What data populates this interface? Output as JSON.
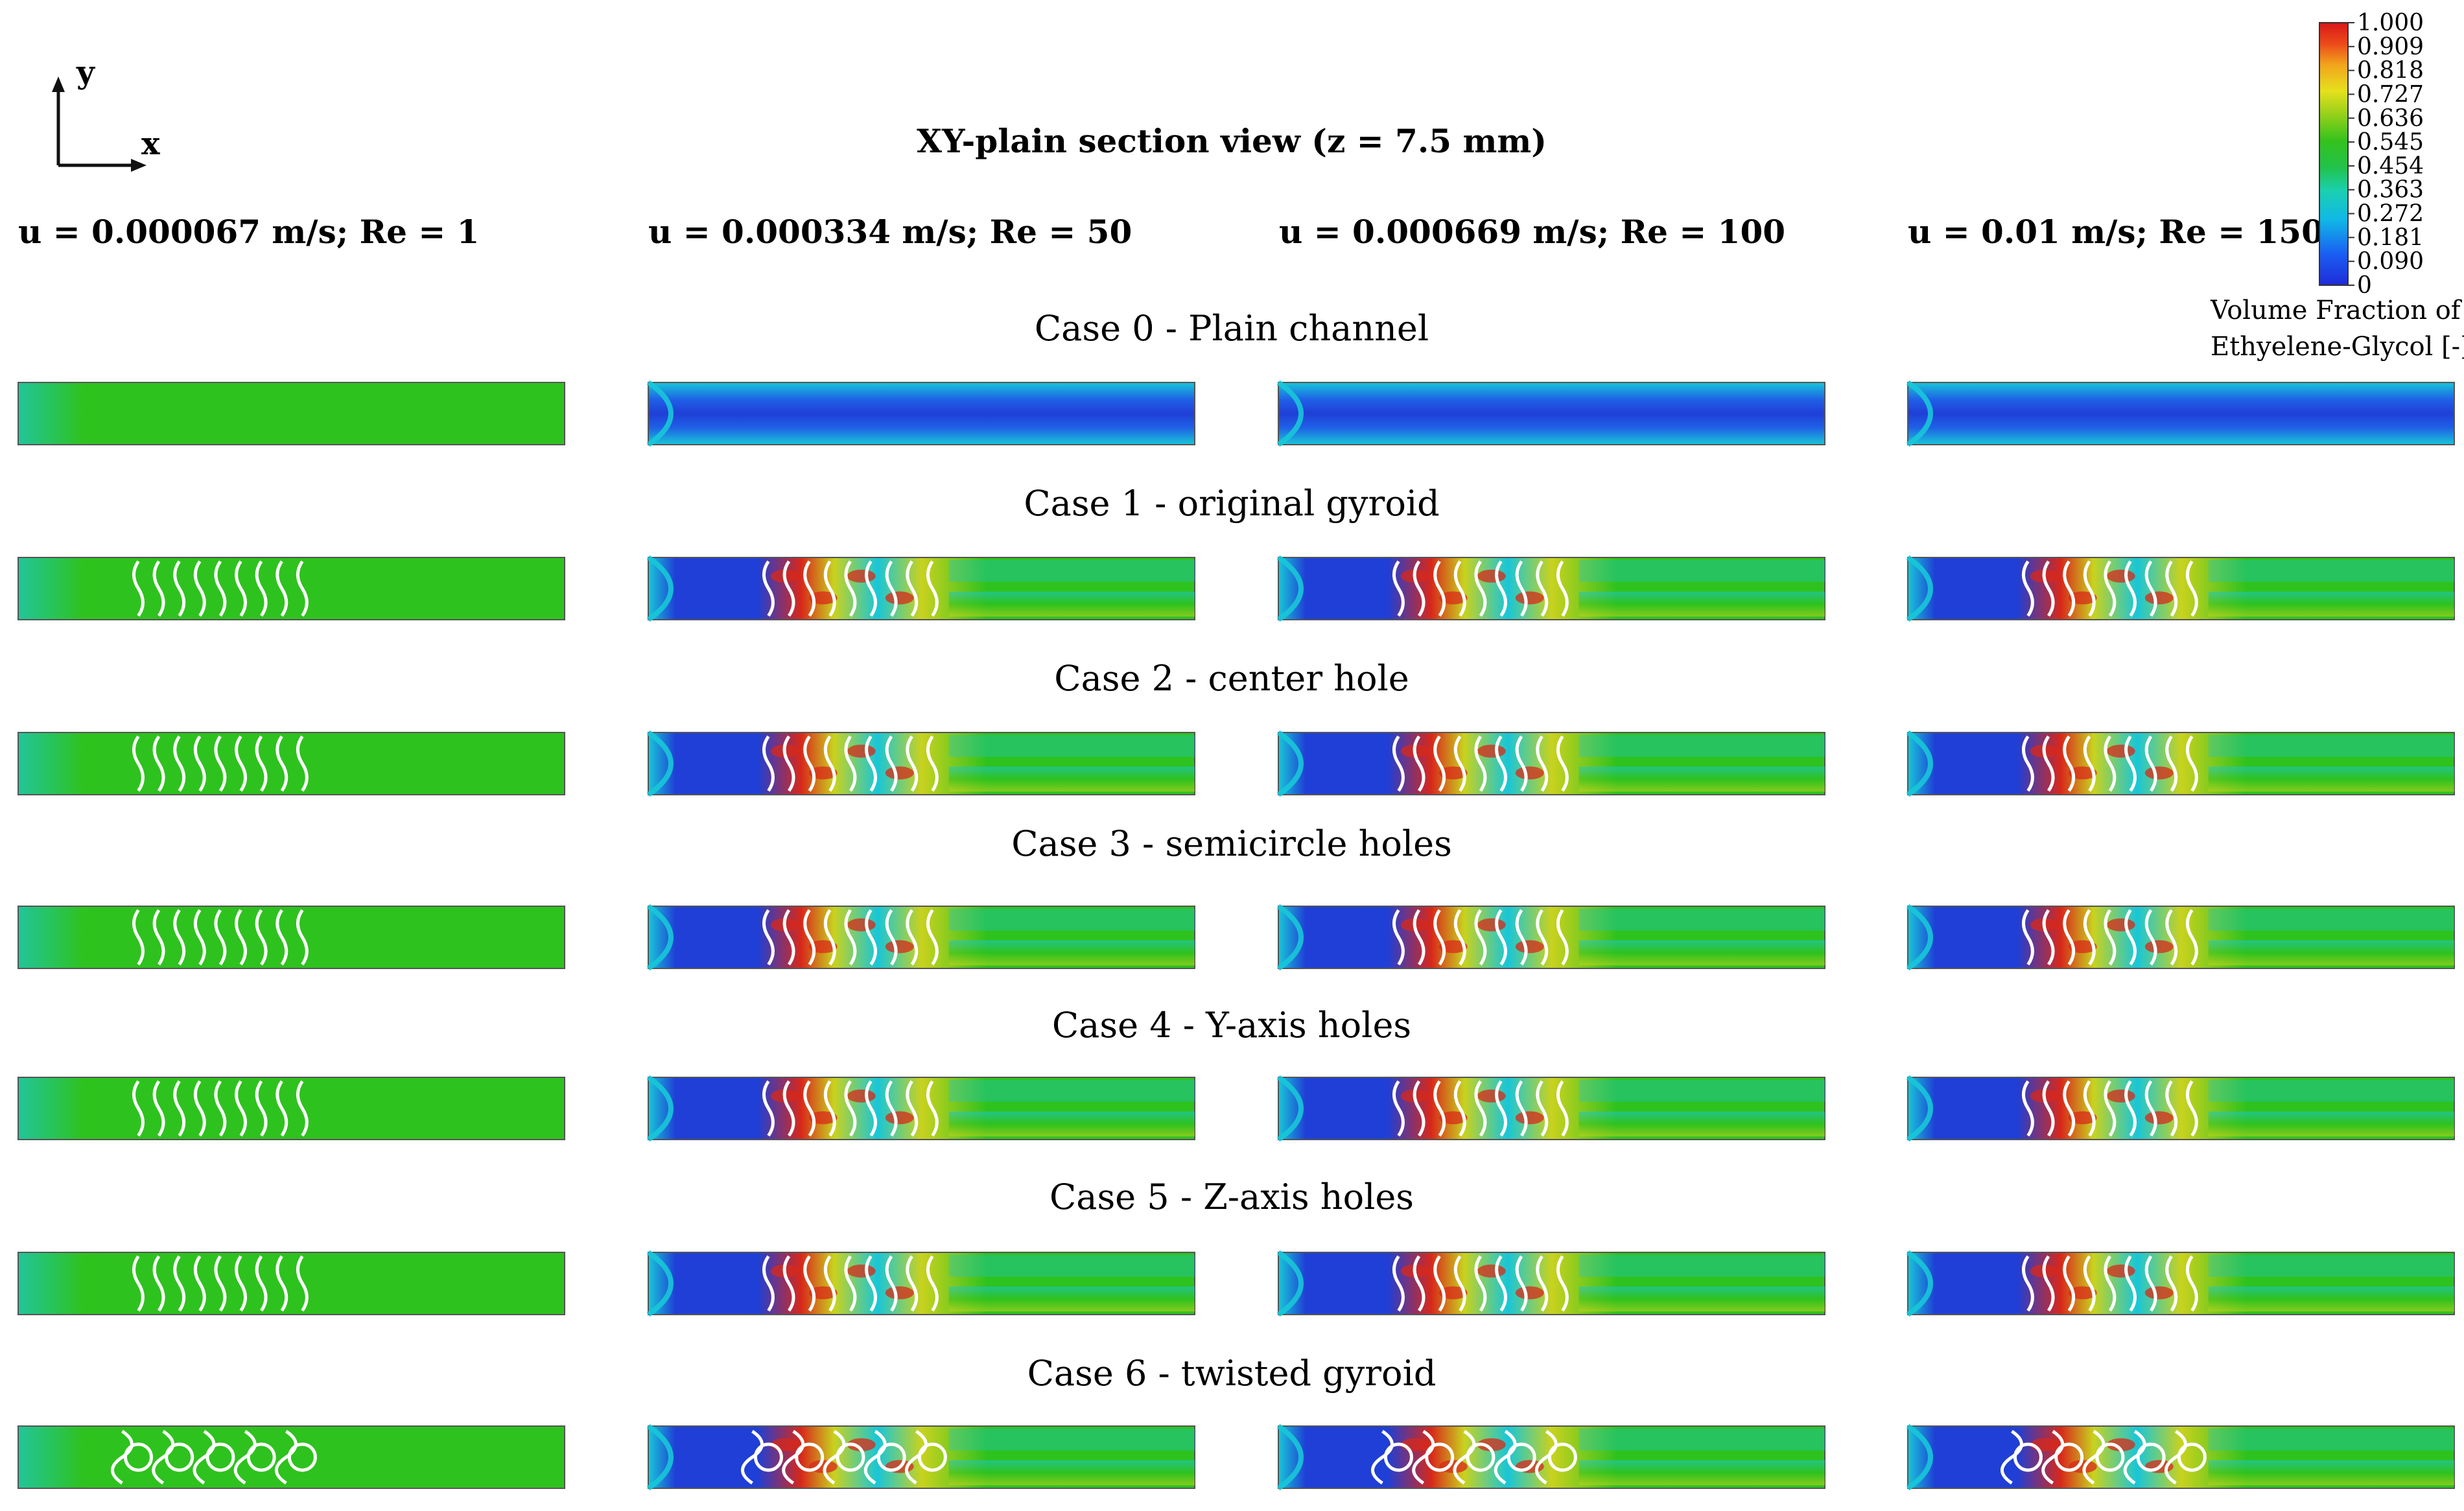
{
  "title": "XY-plain section view (z = 7.5 mm)",
  "axes": {
    "y_label": "y",
    "x_label": "x"
  },
  "columns": [
    "u = 0.000067 m/s; Re = 1",
    "u = 0.000334 m/s; Re = 50",
    "u = 0.000669 m/s; Re = 100",
    "u = 0.01 m/s; Re = 150"
  ],
  "cases": [
    "Case 0 - Plain channel",
    "Case 1 - original gyroid",
    "Case 2 - center hole",
    "Case 3 - semicircle holes",
    "Case 4 - Y-axis holes",
    "Case 5 - Z-axis holes",
    "Case 6 - twisted gyroid"
  ],
  "colorbar": {
    "title_line1": "Volume Fraction of",
    "title_line2": "Ethyelene-Glycol [-]",
    "ticks": [
      "1.000",
      "0.909",
      "0.818",
      "0.727",
      "0.636",
      "0.545",
      "0.454",
      "0.363",
      "0.272",
      "0.181",
      "0.090",
      "0"
    ],
    "colors": [
      "#1f2bd8",
      "#1a5ff2",
      "#10b8e6",
      "#1ad0b0",
      "#22c24a",
      "#34c21c",
      "#9fd21a",
      "#e6e01c",
      "#f2a41c",
      "#ec4a1a",
      "#d81818"
    ]
  },
  "palette": {
    "blue": "#1f3fd6",
    "cyan": "#18c6d8",
    "green": "#2ec21e",
    "yellow": "#c9d21e",
    "red": "#d8281a"
  }
}
